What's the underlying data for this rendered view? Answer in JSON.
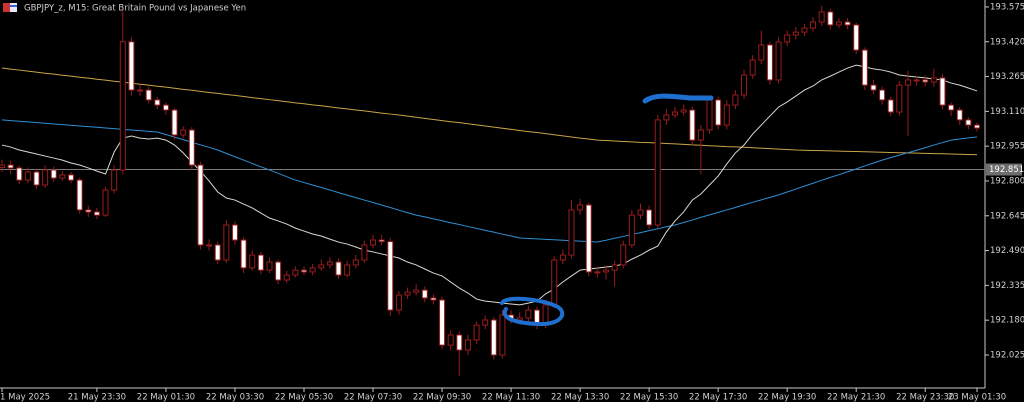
{
  "chart_data": {
    "type": "candlestick",
    "title": "GBPJPY_z, M15:  Great Britain Pound vs Japanese Yen",
    "categories": [
      "1 May 2025",
      null,
      null,
      null,
      null,
      null,
      null,
      null,
      null,
      null,
      null,
      "21 May 23:30",
      null,
      null,
      null,
      null,
      null,
      null,
      null,
      "22 May 01:30",
      null,
      null,
      null,
      null,
      null,
      null,
      null,
      "22 May 03:30",
      null,
      null,
      null,
      null,
      null,
      null,
      null,
      "22 May 05:30",
      null,
      null,
      null,
      null,
      null,
      null,
      null,
      "22 May 07:30",
      null,
      null,
      null,
      null,
      null,
      null,
      null,
      "22 May 09:30",
      null,
      null,
      null,
      null,
      null,
      null,
      null,
      "22 May 11:30",
      null,
      null,
      null,
      null,
      null,
      null,
      null,
      "22 May 13:30",
      null,
      null,
      null,
      null,
      null,
      null,
      null,
      "22 May 15:30",
      null,
      null,
      null,
      null,
      null,
      null,
      null,
      "22 May 17:30",
      null,
      null,
      null,
      null,
      null,
      null,
      null,
      "22 May 19:30",
      null,
      null,
      null,
      null,
      null,
      null,
      null,
      "22 May 21:30",
      null,
      null,
      null,
      null,
      null,
      null,
      null,
      "22 May 23:30",
      null,
      null,
      null,
      null,
      null,
      "23 May 01:30"
    ],
    "open": [
      192.86,
      192.871,
      192.858,
      192.804,
      192.84,
      192.782,
      192.849,
      192.813,
      192.827,
      192.804,
      192.671,
      192.662,
      192.648,
      192.76,
      192.849,
      193.42,
      193.205,
      193.205,
      193.161,
      193.138,
      193.116,
      193.005,
      193.027,
      192.871,
      192.515,
      192.515,
      192.448,
      192.604,
      192.537,
      192.413,
      192.47,
      192.403,
      192.439,
      192.359,
      192.381,
      192.403,
      192.395,
      192.413,
      192.426,
      192.439,
      192.381,
      192.426,
      192.448,
      192.515,
      192.537,
      192.53,
      192.225,
      192.292,
      192.305,
      192.314,
      192.279,
      192.27,
      192.069,
      192.114,
      192.047,
      192.092,
      192.158,
      192.181,
      192.025,
      192.203,
      192.181,
      192.19,
      192.225,
      192.158,
      192.248,
      192.448,
      192.47,
      192.671,
      192.693,
      192.395,
      192.395,
      192.403,
      192.426,
      192.515,
      192.648,
      192.671,
      192.604,
      193.072,
      193.094,
      193.107,
      193.116,
      192.982,
      193.027,
      193.161,
      193.049,
      193.138,
      193.183,
      193.272,
      193.339,
      193.406,
      193.25,
      193.419,
      193.45,
      193.463,
      193.481,
      193.508,
      193.553,
      193.495,
      193.508,
      193.495,
      193.383,
      193.227,
      193.205,
      193.161,
      193.107,
      193.227,
      193.25,
      193.25,
      193.241,
      193.259,
      193.138,
      193.116,
      193.072,
      193.049
    ],
    "high": [
      192.895,
      192.89,
      192.87,
      192.86,
      192.855,
      192.87,
      192.865,
      192.845,
      192.84,
      192.815,
      192.69,
      192.68,
      192.775,
      192.87,
      193.56,
      193.44,
      193.23,
      193.22,
      193.175,
      193.15,
      193.125,
      193.045,
      193.04,
      192.885,
      192.54,
      192.53,
      192.625,
      192.62,
      192.55,
      192.49,
      192.485,
      192.46,
      192.45,
      192.4,
      192.42,
      192.42,
      192.43,
      192.45,
      192.46,
      192.455,
      192.445,
      192.47,
      192.535,
      192.56,
      192.56,
      192.545,
      192.31,
      192.325,
      192.34,
      192.33,
      192.295,
      192.285,
      192.135,
      192.13,
      192.115,
      192.175,
      192.2,
      192.195,
      192.225,
      192.225,
      192.215,
      192.245,
      192.24,
      192.27,
      192.465,
      192.495,
      192.715,
      192.72,
      192.705,
      192.42,
      192.425,
      192.445,
      192.535,
      192.67,
      192.7,
      192.69,
      193.095,
      193.12,
      193.13,
      193.14,
      193.13,
      193.05,
      193.18,
      193.175,
      193.16,
      193.205,
      193.295,
      193.36,
      193.47,
      193.42,
      193.44,
      193.47,
      193.485,
      193.5,
      193.53,
      193.58,
      193.565,
      193.525,
      193.525,
      193.505,
      193.395,
      193.25,
      193.22,
      193.175,
      193.245,
      193.29,
      193.265,
      193.27,
      193.3,
      193.275,
      193.15,
      193.13,
      193.085,
      193.06
    ],
    "low": [
      192.84,
      192.83,
      192.785,
      192.79,
      192.765,
      192.77,
      192.795,
      192.8,
      192.79,
      192.655,
      192.64,
      192.63,
      192.64,
      192.745,
      192.83,
      193.18,
      193.18,
      193.145,
      193.12,
      193.095,
      192.985,
      192.99,
      192.85,
      192.495,
      192.49,
      192.43,
      192.435,
      192.515,
      192.39,
      192.4,
      192.385,
      192.39,
      192.34,
      192.345,
      192.37,
      192.38,
      192.38,
      192.4,
      192.41,
      192.365,
      192.37,
      192.41,
      192.435,
      192.5,
      192.515,
      192.2,
      192.205,
      192.275,
      192.29,
      192.26,
      192.25,
      192.05,
      192.045,
      191.93,
      192.025,
      192.075,
      192.14,
      192.005,
      192.01,
      192.165,
      192.165,
      192.175,
      192.14,
      192.145,
      192.235,
      192.43,
      192.455,
      192.65,
      192.375,
      192.37,
      192.36,
      192.33,
      192.41,
      192.5,
      192.63,
      192.585,
      192.59,
      193.05,
      193.08,
      193.09,
      192.96,
      192.83,
      193.01,
      193.03,
      193.03,
      193.12,
      193.165,
      193.255,
      193.32,
      193.23,
      193.235,
      193.4,
      193.43,
      193.445,
      193.465,
      193.49,
      193.475,
      193.48,
      193.475,
      193.365,
      193.205,
      193.185,
      193.14,
      193.09,
      193.09,
      193.0,
      193.225,
      193.22,
      193.22,
      193.12,
      193.09,
      193.05,
      193.03,
      193.02
    ],
    "close": [
      192.871,
      192.858,
      192.804,
      192.84,
      192.782,
      192.849,
      192.813,
      192.827,
      192.804,
      192.671,
      192.662,
      192.648,
      192.76,
      192.849,
      193.42,
      193.205,
      193.205,
      193.161,
      193.138,
      193.116,
      193.005,
      193.027,
      192.871,
      192.515,
      192.515,
      192.448,
      192.604,
      192.537,
      192.413,
      192.47,
      192.403,
      192.439,
      192.359,
      192.381,
      192.403,
      192.395,
      192.413,
      192.426,
      192.439,
      192.381,
      192.426,
      192.448,
      192.515,
      192.537,
      192.53,
      192.225,
      192.292,
      192.305,
      192.314,
      192.279,
      192.27,
      192.069,
      192.114,
      192.047,
      192.092,
      192.158,
      192.181,
      192.025,
      192.203,
      192.181,
      192.19,
      192.225,
      192.158,
      192.248,
      192.448,
      192.47,
      192.671,
      192.693,
      192.395,
      192.395,
      192.403,
      192.426,
      192.515,
      192.648,
      192.671,
      192.604,
      193.072,
      193.094,
      193.107,
      193.116,
      192.982,
      193.027,
      193.161,
      193.049,
      193.138,
      193.183,
      193.272,
      193.339,
      193.406,
      193.25,
      193.419,
      193.45,
      193.463,
      193.481,
      193.508,
      193.553,
      193.495,
      193.508,
      193.495,
      193.383,
      193.227,
      193.205,
      193.161,
      193.107,
      193.227,
      193.25,
      193.25,
      193.241,
      193.259,
      193.138,
      193.116,
      193.072,
      193.049,
      193.036
    ],
    "up_color": "#9a1c1c",
    "down_color": "#ffffff",
    "series": [
      {
        "color": "#c9a447",
        "values": [
          193.303,
          193.298,
          193.294,
          193.289,
          193.285,
          193.28,
          193.276,
          193.271,
          193.267,
          193.262,
          193.258,
          193.253,
          193.249,
          193.244,
          193.24,
          193.235,
          193.231,
          193.227,
          193.222,
          193.218,
          193.213,
          193.208,
          193.204,
          193.199,
          193.194,
          193.19,
          193.185,
          193.181,
          193.176,
          193.171,
          193.167,
          193.162,
          193.158,
          193.153,
          193.148,
          193.144,
          193.139,
          193.135,
          193.13,
          193.125,
          193.121,
          193.116,
          193.112,
          193.107,
          193.102,
          193.098,
          193.094,
          193.089,
          193.084,
          193.079,
          193.074,
          193.069,
          193.064,
          193.06,
          193.055,
          193.05,
          193.045,
          193.04,
          193.035,
          193.03,
          193.025,
          193.02,
          193.016,
          193.011,
          193.006,
          193.001,
          192.996,
          192.991,
          192.987,
          192.982,
          192.98,
          192.978,
          192.976,
          192.974,
          192.972,
          192.971,
          192.969,
          192.967,
          192.965,
          192.963,
          192.961,
          192.959,
          192.957,
          192.955,
          192.953,
          192.952,
          192.95,
          192.948,
          192.946,
          192.944,
          192.942,
          192.94,
          192.938,
          192.937,
          192.936,
          192.935,
          192.934,
          192.933,
          192.932,
          192.931,
          192.93,
          192.929,
          192.928,
          192.927,
          192.926,
          192.925,
          192.924,
          192.923,
          192.922,
          192.921,
          192.92,
          192.919,
          192.918,
          192.917
        ]
      },
      {
        "color": "#2f8fd4",
        "values": [
          193.072,
          193.069,
          193.066,
          193.063,
          193.06,
          193.057,
          193.054,
          193.051,
          193.048,
          193.045,
          193.042,
          193.039,
          193.036,
          193.033,
          193.03,
          193.027,
          193.024,
          193.021,
          193.018,
          193.007,
          192.995,
          192.984,
          192.972,
          192.961,
          192.95,
          192.938,
          192.923,
          192.908,
          192.893,
          192.878,
          192.863,
          192.849,
          192.834,
          192.819,
          192.804,
          192.793,
          192.782,
          192.771,
          192.76,
          192.748,
          192.737,
          192.726,
          192.715,
          192.704,
          192.693,
          192.682,
          192.67,
          192.659,
          192.648,
          192.64,
          192.631,
          192.623,
          192.614,
          192.606,
          192.597,
          192.589,
          192.58,
          192.572,
          192.563,
          192.555,
          192.546,
          192.544,
          192.542,
          192.54,
          192.538,
          192.536,
          192.534,
          192.532,
          192.53,
          192.528,
          192.536,
          192.545,
          192.553,
          192.562,
          192.57,
          192.579,
          192.587,
          192.596,
          192.604,
          192.615,
          192.626,
          192.638,
          192.649,
          192.66,
          192.671,
          192.682,
          192.694,
          192.705,
          192.716,
          192.727,
          192.738,
          192.751,
          192.764,
          192.777,
          192.79,
          192.803,
          192.816,
          192.828,
          192.841,
          192.854,
          192.867,
          192.88,
          192.893,
          192.904,
          192.915,
          192.926,
          192.937,
          192.948,
          192.96,
          192.971,
          192.982,
          192.987,
          192.992,
          192.996
        ]
      },
      {
        "color": "#d9d9cf",
        "values": [
          192.96,
          192.951,
          192.938,
          192.929,
          192.92,
          192.911,
          192.902,
          192.893,
          192.88,
          192.871,
          192.858,
          192.844,
          192.831,
          192.929,
          192.991,
          193.0,
          192.991,
          192.987,
          192.991,
          192.982,
          192.96,
          192.925,
          192.884,
          192.844,
          192.8,
          192.751,
          192.724,
          192.715,
          192.697,
          192.68,
          192.657,
          192.635,
          192.622,
          192.608,
          192.59,
          192.577,
          192.564,
          192.555,
          192.541,
          192.528,
          192.519,
          192.506,
          192.492,
          192.484,
          192.475,
          192.466,
          192.457,
          192.439,
          192.426,
          192.408,
          192.39,
          192.377,
          192.35,
          192.323,
          192.301,
          192.274,
          192.265,
          192.261,
          192.256,
          192.252,
          192.248,
          192.256,
          192.265,
          192.297,
          192.319,
          192.35,
          192.377,
          192.403,
          192.408,
          192.412,
          192.417,
          192.421,
          192.43,
          192.452,
          192.47,
          192.492,
          192.51,
          192.573,
          192.622,
          192.662,
          192.715,
          192.742,
          192.782,
          192.822,
          192.876,
          192.925,
          192.96,
          193.009,
          193.049,
          193.089,
          193.129,
          193.152,
          193.178,
          193.205,
          193.223,
          193.25,
          193.267,
          193.285,
          193.303,
          193.316,
          193.308,
          193.299,
          193.294,
          193.285,
          193.272,
          193.267,
          193.263,
          193.259,
          193.254,
          193.25,
          193.236,
          193.227,
          193.214,
          193.201
        ]
      }
    ],
    "current_price": 192.851,
    "ylim": [
      191.878,
      193.606
    ],
    "yticks": [
      193.575,
      {
        "value": 193.42,
        "label": "193.420"
      },
      193.265,
      {
        "value": 193.11,
        "label": "193.110"
      },
      192.955,
      {
        "value": 192.8,
        "label": "192.800"
      },
      192.645,
      {
        "value": 192.49,
        "label": "192.490"
      },
      192.335,
      {
        "value": 192.18,
        "label": "192.180"
      },
      192.025
    ]
  }
}
